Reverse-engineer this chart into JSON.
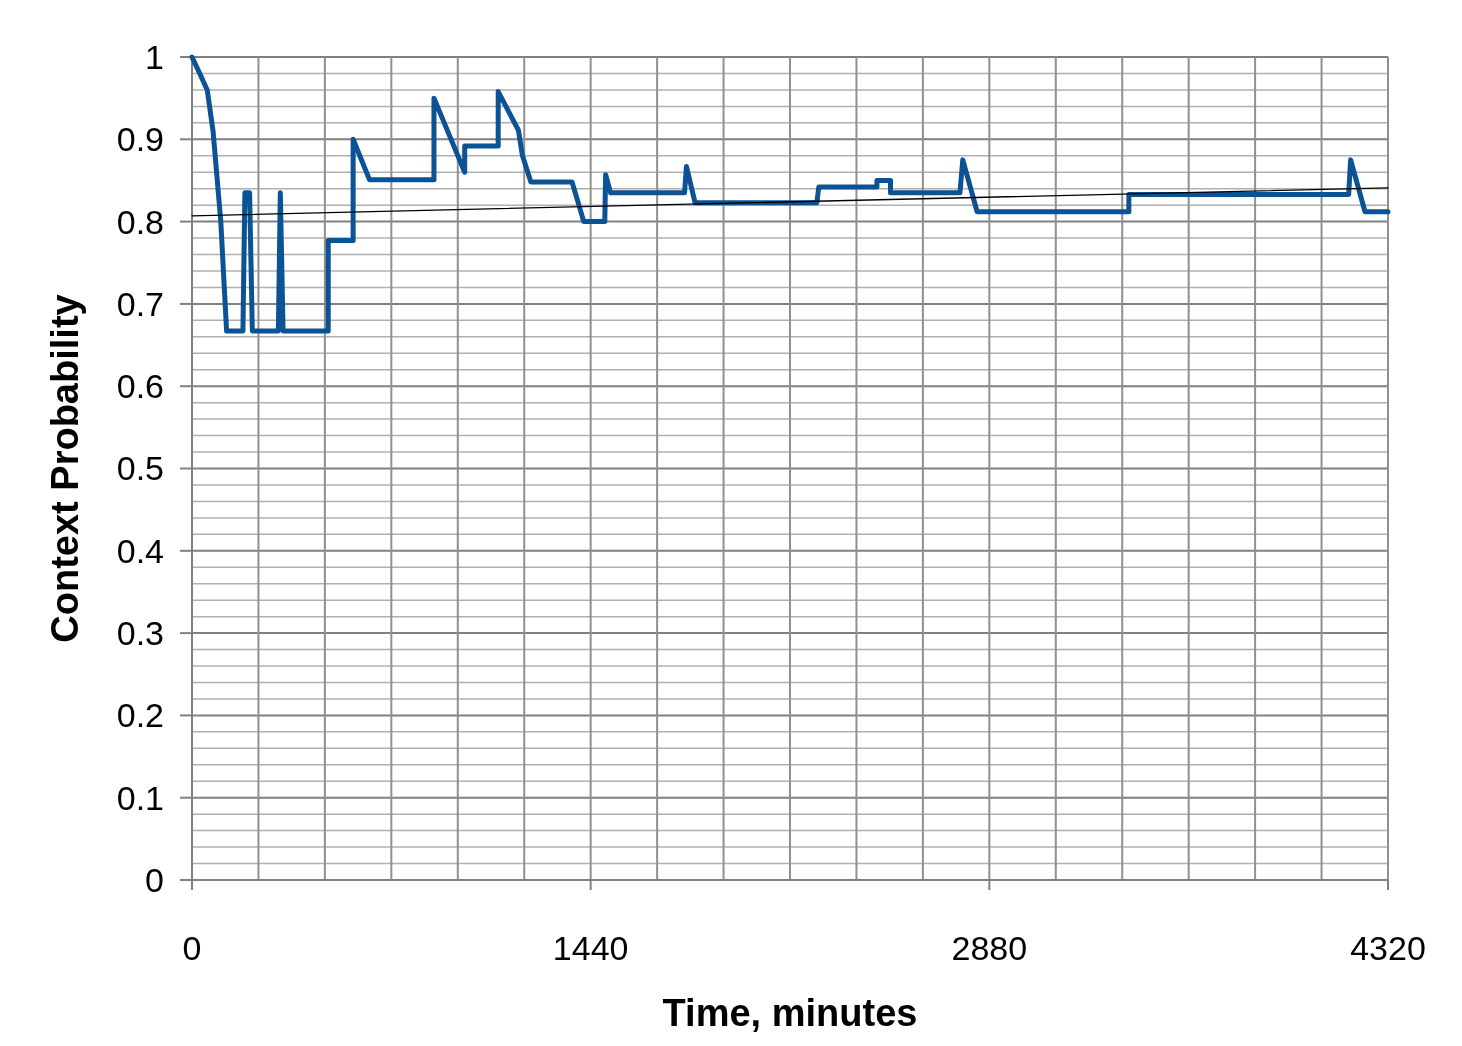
{
  "chart_data": {
    "type": "line",
    "xlabel": "Time, minutes",
    "ylabel": "Context Probability",
    "xlim": [
      0,
      4320
    ],
    "ylim": [
      0,
      1
    ],
    "xticks": [
      0,
      {
        "value": 240,
        "label": null
      },
      {
        "value": 480,
        "label": null
      },
      {
        "value": 720,
        "label": null
      },
      {
        "value": 960,
        "label": null
      },
      {
        "value": 1200,
        "label": null
      },
      1440,
      {
        "value": 1680,
        "label": null
      },
      {
        "value": 1920,
        "label": null
      },
      {
        "value": 2160,
        "label": null
      },
      {
        "value": 2400,
        "label": null
      },
      {
        "value": 2640,
        "label": null
      },
      2880,
      {
        "value": 3120,
        "label": null
      },
      {
        "value": 3360,
        "label": null
      },
      {
        "value": 3600,
        "label": null
      },
      {
        "value": 3840,
        "label": null
      },
      {
        "value": 4080,
        "label": null
      },
      4320
    ],
    "yticks": [
      0,
      {
        "value": 0.02,
        "label": null
      },
      {
        "value": 0.04,
        "label": null
      },
      {
        "value": 0.06,
        "label": null
      },
      {
        "value": 0.08,
        "label": null
      },
      0.1,
      {
        "value": 0.12,
        "label": null
      },
      {
        "value": 0.14,
        "label": null
      },
      {
        "value": 0.16,
        "label": null
      },
      {
        "value": 0.18,
        "label": null
      },
      0.2,
      {
        "value": 0.22,
        "label": null
      },
      {
        "value": 0.24,
        "label": null
      },
      {
        "value": 0.26,
        "label": null
      },
      {
        "value": 0.28,
        "label": null
      },
      0.3,
      {
        "value": 0.32,
        "label": null
      },
      {
        "value": 0.34,
        "label": null
      },
      {
        "value": 0.36,
        "label": null
      },
      {
        "value": 0.38,
        "label": null
      },
      0.4,
      {
        "value": 0.42,
        "label": null
      },
      {
        "value": 0.44,
        "label": null
      },
      {
        "value": 0.46,
        "label": null
      },
      {
        "value": 0.48,
        "label": null
      },
      0.5,
      {
        "value": 0.52,
        "label": null
      },
      {
        "value": 0.54,
        "label": null
      },
      {
        "value": 0.56,
        "label": null
      },
      {
        "value": 0.58,
        "label": null
      },
      0.6,
      {
        "value": 0.62,
        "label": null
      },
      {
        "value": 0.64,
        "label": null
      },
      {
        "value": 0.66,
        "label": null
      },
      {
        "value": 0.68,
        "label": null
      },
      0.7,
      {
        "value": 0.72,
        "label": null
      },
      {
        "value": 0.74,
        "label": null
      },
      {
        "value": 0.76,
        "label": null
      },
      {
        "value": 0.78,
        "label": null
      },
      0.8,
      {
        "value": 0.82,
        "label": null
      },
      {
        "value": 0.84,
        "label": null
      },
      {
        "value": 0.86,
        "label": null
      },
      {
        "value": 0.88,
        "label": null
      },
      0.9,
      {
        "value": 0.92,
        "label": null
      },
      {
        "value": 0.94,
        "label": null
      },
      {
        "value": 0.96,
        "label": null
      },
      {
        "value": 0.98,
        "label": null
      },
      1
    ],
    "grid": true,
    "marker": "none",
    "line_style": "solid",
    "series": [
      {
        "color": "#0b5394",
        "x": [
          0,
          28,
          55,
          76,
          104,
          125,
          184,
          191,
          208,
          218,
          312,
          319,
          329,
          492,
          492,
          582,
          582,
          641,
          874,
          874,
          985,
          985,
          1106,
          1106,
          1179,
          1193,
          1224,
          1373,
          1415,
          1491,
          1494,
          1512,
          1779,
          1786,
          1817,
          2257,
          2264,
          2474,
          2474,
          2523,
          2523,
          2774,
          2784,
          2836,
          3384,
          3384,
          4178,
          4185,
          4237,
          4320
        ],
        "values": [
          1.0,
          0.98,
          0.96,
          0.91,
          0.8,
          0.667,
          0.667,
          0.835,
          0.835,
          0.667,
          0.667,
          0.835,
          0.667,
          0.667,
          0.777,
          0.777,
          0.9,
          0.851,
          0.851,
          0.95,
          0.86,
          0.892,
          0.892,
          0.958,
          0.911,
          0.881,
          0.848,
          0.848,
          0.8,
          0.8,
          0.857,
          0.835,
          0.835,
          0.867,
          0.823,
          0.823,
          0.842,
          0.842,
          0.85,
          0.85,
          0.835,
          0.835,
          0.875,
          0.812,
          0.812,
          0.833,
          0.833,
          0.875,
          0.812,
          0.812
        ]
      },
      {
        "color": "#000000",
        "type": "line",
        "x": [
          0,
          4320
        ],
        "values": [
          0.807,
          0.841
        ]
      }
    ]
  }
}
